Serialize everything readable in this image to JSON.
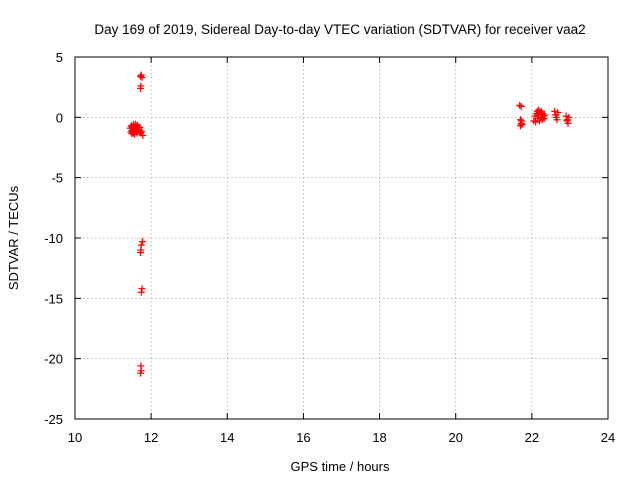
{
  "chart_data": {
    "type": "scatter",
    "title": "Day 169 of 2019, Sidereal Day-to-day VTEC variation (SDTVAR) for receiver vaa2",
    "xlabel": "GPS time / hours",
    "ylabel": "SDTVAR / TECUs",
    "xlim": [
      10,
      24
    ],
    "ylim": [
      -25,
      5
    ],
    "xticks": [
      10,
      12,
      14,
      16,
      18,
      20,
      22,
      24
    ],
    "yticks": [
      -25,
      -20,
      -15,
      -10,
      -5,
      0,
      5
    ],
    "grid": true,
    "marker": "+",
    "color": "#ff0000",
    "series": [
      {
        "name": "SDTVAR",
        "points": [
          [
            11.45,
            -0.9
          ],
          [
            11.47,
            -1.2
          ],
          [
            11.48,
            -0.7
          ],
          [
            11.5,
            -1.1
          ],
          [
            11.5,
            -0.8
          ],
          [
            11.52,
            -1.3
          ],
          [
            11.53,
            -0.6
          ],
          [
            11.55,
            -1.0
          ],
          [
            11.56,
            -1.4
          ],
          [
            11.57,
            -0.9
          ],
          [
            11.58,
            -1.2
          ],
          [
            11.6,
            -0.7
          ],
          [
            11.6,
            -1.1
          ],
          [
            11.62,
            -0.9
          ],
          [
            11.63,
            -1.3
          ],
          [
            11.65,
            -1.0
          ],
          [
            11.66,
            -0.8
          ],
          [
            11.68,
            -1.2
          ],
          [
            11.7,
            -1.1
          ],
          [
            11.72,
            -1.3
          ],
          [
            11.75,
            -1.2
          ],
          [
            11.78,
            -1.5
          ],
          [
            11.54,
            -1.25
          ],
          [
            11.64,
            -0.65
          ],
          [
            11.7,
            -0.85
          ],
          [
            11.58,
            -0.55
          ],
          [
            11.49,
            -1.35
          ],
          [
            11.72,
            3.4
          ],
          [
            11.76,
            3.3
          ],
          [
            11.74,
            3.5
          ],
          [
            11.72,
            2.4
          ],
          [
            11.73,
            2.6
          ],
          [
            11.77,
            -10.3
          ],
          [
            11.74,
            -10.6
          ],
          [
            11.73,
            -11.0
          ],
          [
            11.72,
            -11.2
          ],
          [
            11.76,
            -14.2
          ],
          [
            11.74,
            -14.5
          ],
          [
            11.73,
            -20.6
          ],
          [
            11.74,
            -21.0
          ],
          [
            11.72,
            -21.2
          ],
          [
            21.68,
            1.0
          ],
          [
            21.72,
            0.9
          ],
          [
            21.7,
            -0.2
          ],
          [
            21.72,
            -0.5
          ],
          [
            21.74,
            -0.6
          ],
          [
            21.7,
            -0.7
          ],
          [
            21.73,
            -0.3
          ],
          [
            22.05,
            -0.3
          ],
          [
            22.08,
            0.1
          ],
          [
            22.1,
            -0.4
          ],
          [
            22.12,
            0.3
          ],
          [
            22.14,
            0.5
          ],
          [
            22.15,
            -0.1
          ],
          [
            22.17,
            0.2
          ],
          [
            22.18,
            0.6
          ],
          [
            22.2,
            -0.3
          ],
          [
            22.22,
            0.4
          ],
          [
            22.24,
            0.0
          ],
          [
            22.25,
            0.5
          ],
          [
            22.27,
            -0.2
          ],
          [
            22.28,
            0.3
          ],
          [
            22.3,
            0.1
          ],
          [
            22.32,
            -0.1
          ],
          [
            22.34,
            0.2
          ],
          [
            22.6,
            0.5
          ],
          [
            22.62,
            0.2
          ],
          [
            22.64,
            0.0
          ],
          [
            22.66,
            -0.2
          ],
          [
            22.68,
            0.4
          ],
          [
            22.9,
            0.1
          ],
          [
            22.92,
            -0.3
          ],
          [
            22.95,
            -0.5
          ],
          [
            22.97,
            0.0
          ],
          [
            22.93,
            -0.2
          ]
        ]
      }
    ]
  }
}
